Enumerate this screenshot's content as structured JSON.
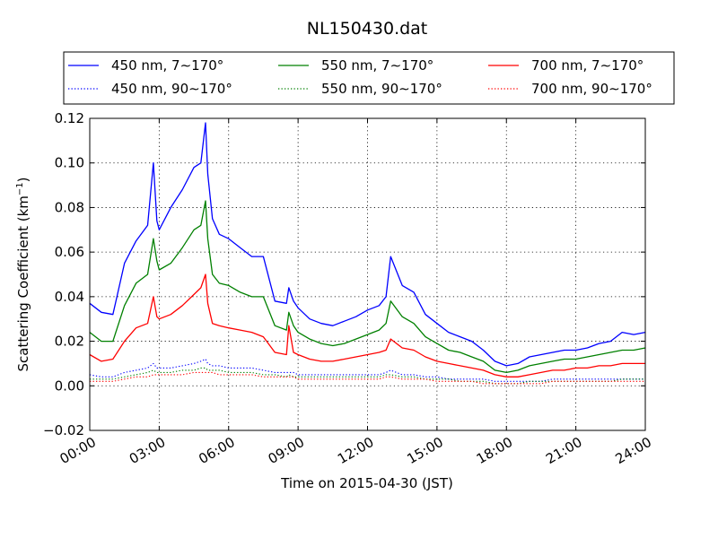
{
  "chart_data": {
    "type": "line",
    "title": "NL150430.dat",
    "xlabel": "Time on 2015-04-30 (JST)",
    "ylabel": "Scattering Coefficient (km",
    "ylabel_sup": "−1",
    "ylabel_close": ")",
    "xlim": [
      "00:00",
      "24:00"
    ],
    "ylim": [
      -0.02,
      0.12
    ],
    "grid": true,
    "legend_position": "top, above plot",
    "x_ticks": [
      "00:00",
      "03:00",
      "06:00",
      "09:00",
      "12:00",
      "15:00",
      "18:00",
      "21:00",
      "24:00"
    ],
    "y_ticks": [
      "−0.02",
      "0.00",
      "0.02",
      "0.04",
      "0.06",
      "0.08",
      "0.10",
      "0.12"
    ],
    "y_tick_values": [
      -0.02,
      0.0,
      0.02,
      0.04,
      0.06,
      0.08,
      0.1,
      0.12
    ],
    "x_unit": "hours",
    "x": [
      0,
      0.5,
      1,
      1.5,
      2,
      2.5,
      2.75,
      2.9,
      3,
      3.5,
      4,
      4.5,
      4.8,
      5,
      5.1,
      5.3,
      5.6,
      6,
      6.5,
      7,
      7.5,
      8,
      8.5,
      8.6,
      8.8,
      9,
      9.5,
      10,
      10.5,
      11,
      11.5,
      12,
      12.5,
      12.8,
      13,
      13.5,
      14,
      14.5,
      15,
      15.5,
      16,
      16.5,
      17,
      17.5,
      18,
      18.5,
      19,
      19.5,
      20,
      20.5,
      21,
      21.5,
      22,
      22.5,
      23,
      23.5,
      24
    ],
    "series": [
      {
        "name": "450 nm, 7∼170°",
        "color": "#0000ff",
        "style": "solid",
        "values": [
          0.037,
          0.033,
          0.032,
          0.055,
          0.065,
          0.072,
          0.1,
          0.074,
          0.07,
          0.08,
          0.088,
          0.098,
          0.1,
          0.118,
          0.095,
          0.075,
          0.068,
          0.066,
          0.062,
          0.058,
          0.058,
          0.038,
          0.037,
          0.044,
          0.038,
          0.035,
          0.03,
          0.028,
          0.027,
          0.029,
          0.031,
          0.034,
          0.036,
          0.04,
          0.058,
          0.045,
          0.042,
          0.032,
          0.028,
          0.024,
          0.022,
          0.02,
          0.016,
          0.011,
          0.009,
          0.01,
          0.013,
          0.014,
          0.015,
          0.016,
          0.016,
          0.017,
          0.019,
          0.02,
          0.024,
          0.023,
          0.024
        ]
      },
      {
        "name": "550 nm, 7∼170°",
        "color": "#008000",
        "style": "solid",
        "values": [
          0.024,
          0.02,
          0.02,
          0.036,
          0.046,
          0.05,
          0.066,
          0.056,
          0.052,
          0.055,
          0.062,
          0.07,
          0.072,
          0.083,
          0.066,
          0.05,
          0.046,
          0.045,
          0.042,
          0.04,
          0.04,
          0.027,
          0.025,
          0.033,
          0.027,
          0.024,
          0.021,
          0.019,
          0.018,
          0.019,
          0.021,
          0.023,
          0.025,
          0.028,
          0.038,
          0.031,
          0.028,
          0.022,
          0.019,
          0.016,
          0.015,
          0.013,
          0.011,
          0.007,
          0.006,
          0.007,
          0.009,
          0.01,
          0.011,
          0.012,
          0.012,
          0.013,
          0.014,
          0.015,
          0.016,
          0.016,
          0.017
        ]
      },
      {
        "name": "700 nm, 7∼170°",
        "color": "#ff0000",
        "style": "solid",
        "values": [
          0.014,
          0.011,
          0.012,
          0.02,
          0.026,
          0.028,
          0.04,
          0.031,
          0.03,
          0.032,
          0.036,
          0.041,
          0.044,
          0.05,
          0.037,
          0.028,
          0.027,
          0.026,
          0.025,
          0.024,
          0.022,
          0.015,
          0.014,
          0.027,
          0.015,
          0.014,
          0.012,
          0.011,
          0.011,
          0.012,
          0.013,
          0.014,
          0.015,
          0.016,
          0.021,
          0.017,
          0.016,
          0.013,
          0.011,
          0.01,
          0.009,
          0.008,
          0.007,
          0.005,
          0.004,
          0.004,
          0.005,
          0.006,
          0.007,
          0.007,
          0.008,
          0.008,
          0.009,
          0.009,
          0.01,
          0.01,
          0.01
        ]
      },
      {
        "name": "450 nm, 90∼170°",
        "color": "#0000ff",
        "style": "dotted",
        "values": [
          0.005,
          0.004,
          0.004,
          0.006,
          0.007,
          0.008,
          0.01,
          0.008,
          0.008,
          0.008,
          0.009,
          0.01,
          0.011,
          0.012,
          0.01,
          0.009,
          0.009,
          0.008,
          0.008,
          0.008,
          0.007,
          0.006,
          0.006,
          0.006,
          0.006,
          0.005,
          0.005,
          0.005,
          0.005,
          0.005,
          0.005,
          0.005,
          0.005,
          0.006,
          0.007,
          0.005,
          0.005,
          0.004,
          0.004,
          0.003,
          0.003,
          0.003,
          0.003,
          0.002,
          0.002,
          0.002,
          0.002,
          0.002,
          0.003,
          0.003,
          0.003,
          0.003,
          0.003,
          0.003,
          0.003,
          0.003,
          0.003
        ]
      },
      {
        "name": "550 nm, 90∼170°",
        "color": "#008000",
        "style": "dotted",
        "values": [
          0.003,
          0.003,
          0.003,
          0.004,
          0.005,
          0.006,
          0.007,
          0.006,
          0.006,
          0.006,
          0.007,
          0.007,
          0.008,
          0.008,
          0.007,
          0.007,
          0.007,
          0.006,
          0.006,
          0.006,
          0.005,
          0.005,
          0.004,
          0.005,
          0.004,
          0.004,
          0.004,
          0.004,
          0.004,
          0.004,
          0.004,
          0.004,
          0.004,
          0.005,
          0.005,
          0.004,
          0.004,
          0.003,
          0.003,
          0.003,
          0.002,
          0.002,
          0.002,
          0.001,
          0.001,
          0.001,
          0.002,
          0.002,
          0.002,
          0.002,
          0.002,
          0.002,
          0.002,
          0.002,
          0.003,
          0.003,
          0.003
        ]
      },
      {
        "name": "700 nm, 90∼170°",
        "color": "#ff0000",
        "style": "dotted",
        "values": [
          0.002,
          0.002,
          0.002,
          0.003,
          0.004,
          0.004,
          0.005,
          0.005,
          0.005,
          0.005,
          0.005,
          0.006,
          0.006,
          0.006,
          0.006,
          0.006,
          0.005,
          0.005,
          0.005,
          0.005,
          0.004,
          0.004,
          0.004,
          0.004,
          0.004,
          0.003,
          0.003,
          0.003,
          0.003,
          0.003,
          0.003,
          0.003,
          0.003,
          0.004,
          0.004,
          0.003,
          0.003,
          0.003,
          0.002,
          0.002,
          0.002,
          0.002,
          0.001,
          0.001,
          0.001,
          0.001,
          0.001,
          0.001,
          0.002,
          0.002,
          0.002,
          0.002,
          0.002,
          0.002,
          0.002,
          0.002,
          0.002
        ]
      }
    ],
    "legend": [
      {
        "label": "450 nm, 7∼170°",
        "color": "#0000ff",
        "style": "solid"
      },
      {
        "label": "550 nm, 7∼170°",
        "color": "#008000",
        "style": "solid"
      },
      {
        "label": "700 nm, 7∼170°",
        "color": "#ff0000",
        "style": "solid"
      },
      {
        "label": "450 nm, 90∼170°",
        "color": "#0000ff",
        "style": "dotted"
      },
      {
        "label": "550 nm, 90∼170°",
        "color": "#008000",
        "style": "dotted"
      },
      {
        "label": "700 nm, 90∼170°",
        "color": "#ff0000",
        "style": "dotted"
      }
    ]
  }
}
